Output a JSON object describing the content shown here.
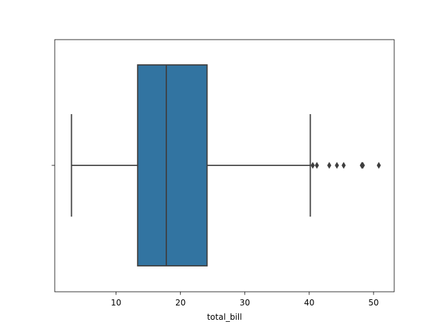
{
  "chart_data": {
    "type": "box",
    "orientation": "horizontal",
    "xlabel": "total_bill",
    "ylabel": "",
    "xlim": [
      0.47,
      53.2
    ],
    "xticks": [
      10,
      20,
      30,
      40,
      50
    ],
    "grid": false,
    "box": {
      "whisker_low": 3.07,
      "q1": 13.35,
      "median": 17.8,
      "q3": 24.13,
      "whisker_high": 40.17,
      "outliers": [
        40.55,
        41.19,
        43.11,
        44.3,
        45.35,
        48.17,
        48.27,
        48.33,
        50.81
      ]
    },
    "colors": {
      "box_fill": "#3274a1",
      "line": "#3f3f3f",
      "axes": "#000000"
    }
  }
}
